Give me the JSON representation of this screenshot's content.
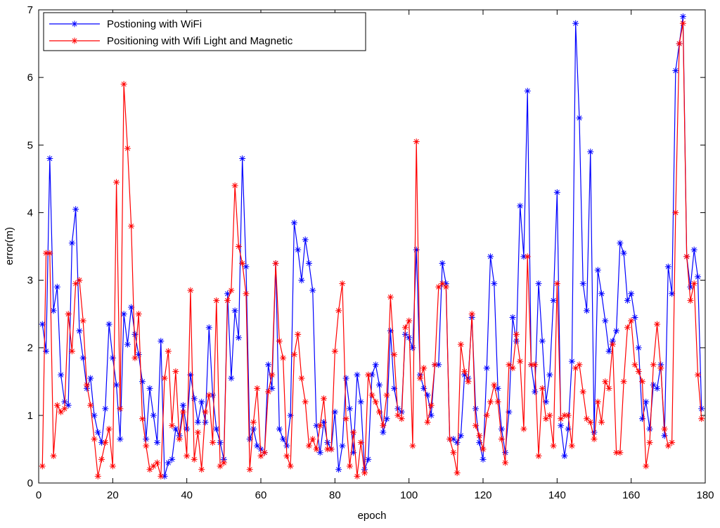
{
  "chart_data": {
    "type": "line",
    "xlabel": "epoch",
    "ylabel": "error(m)",
    "xlim": [
      0,
      180
    ],
    "xticks": [
      0,
      20,
      40,
      60,
      80,
      100,
      120,
      140,
      160,
      180
    ],
    "ylim": [
      0,
      7
    ],
    "yticks": [
      0,
      1,
      2,
      3,
      4,
      5,
      6,
      7
    ],
    "grid": false,
    "legend": "upper left",
    "marker": "*",
    "x": [
      1,
      2,
      3,
      4,
      5,
      6,
      7,
      8,
      9,
      10,
      11,
      12,
      13,
      14,
      15,
      16,
      17,
      18,
      19,
      20,
      21,
      22,
      23,
      24,
      25,
      26,
      27,
      28,
      29,
      30,
      31,
      32,
      33,
      34,
      35,
      36,
      37,
      38,
      39,
      40,
      41,
      42,
      43,
      44,
      45,
      46,
      47,
      48,
      49,
      50,
      51,
      52,
      53,
      54,
      55,
      56,
      57,
      58,
      59,
      60,
      61,
      62,
      63,
      64,
      65,
      66,
      67,
      68,
      69,
      70,
      71,
      72,
      73,
      74,
      75,
      76,
      77,
      78,
      79,
      80,
      81,
      82,
      83,
      84,
      85,
      86,
      87,
      88,
      89,
      90,
      91,
      92,
      93,
      94,
      95,
      96,
      97,
      98,
      99,
      100,
      101,
      102,
      103,
      104,
      105,
      106,
      107,
      108,
      109,
      110,
      111,
      112,
      113,
      114,
      115,
      116,
      117,
      118,
      119,
      120,
      121,
      122,
      123,
      124,
      125,
      126,
      127,
      128,
      129,
      130,
      131,
      132,
      133,
      134,
      135,
      136,
      137,
      138,
      139,
      140,
      141,
      142,
      143,
      144,
      145,
      146,
      147,
      148,
      149,
      150,
      151,
      152,
      153,
      154,
      155,
      156,
      157,
      158,
      159,
      160,
      161,
      162,
      163,
      164,
      165,
      166,
      167,
      168,
      169,
      170,
      171,
      172,
      173,
      174,
      175,
      176,
      177,
      178,
      179
    ],
    "series": [
      {
        "name": "Postioning with WiFi",
        "color": "#0000ff",
        "values": [
          2.35,
          1.95,
          4.8,
          2.55,
          2.9,
          1.6,
          1.2,
          1.15,
          3.55,
          4.05,
          2.25,
          1.85,
          1.4,
          1.55,
          1.0,
          0.75,
          0.6,
          1.1,
          2.35,
          1.85,
          1.45,
          0.65,
          2.5,
          2.05,
          2.6,
          2.2,
          1.9,
          1.5,
          0.65,
          1.4,
          1.0,
          0.6,
          2.1,
          0.1,
          0.3,
          0.35,
          0.8,
          0.7,
          1.15,
          0.8,
          1.6,
          1.25,
          0.9,
          1.2,
          0.9,
          2.3,
          1.3,
          0.8,
          0.6,
          0.35,
          2.8,
          1.55,
          2.55,
          2.15,
          4.8,
          3.2,
          0.65,
          0.8,
          0.55,
          0.5,
          0.45,
          1.75,
          1.4,
          3.25,
          0.8,
          0.65,
          0.55,
          1.0,
          3.85,
          3.45,
          3.0,
          3.6,
          3.25,
          2.85,
          0.85,
          0.45,
          0.9,
          0.6,
          0.5,
          1.05,
          0.2,
          0.55,
          1.55,
          1.1,
          0.45,
          1.6,
          1.2,
          0.2,
          0.35,
          1.6,
          1.75,
          1.45,
          0.75,
          0.95,
          2.25,
          1.4,
          1.1,
          1.05,
          2.2,
          2.15,
          2.0,
          3.45,
          1.6,
          1.4,
          1.3,
          1.0,
          1.75,
          1.75,
          3.25,
          2.95,
          0.65,
          0.65,
          0.6,
          0.7,
          1.6,
          1.55,
          2.45,
          1.1,
          0.6,
          0.35,
          1.7,
          3.35,
          2.95,
          1.4,
          0.8,
          0.45,
          1.05,
          2.45,
          2.1,
          4.1,
          3.35,
          5.8,
          1.75,
          1.35,
          2.95,
          2.1,
          1.2,
          1.6,
          2.7,
          4.3,
          0.85,
          0.4,
          0.8,
          1.8,
          6.8,
          5.4,
          2.95,
          2.55,
          4.9,
          0.75,
          3.15,
          2.8,
          2.4,
          1.95,
          2.1,
          2.25,
          3.55,
          3.4,
          2.7,
          2.8,
          2.45,
          2.0,
          0.95,
          1.2,
          0.8,
          1.45,
          1.4,
          1.75,
          0.7,
          3.2,
          2.8,
          6.1,
          6.5,
          6.9,
          3.35,
          2.9,
          3.45,
          3.05,
          1.1
        ]
      },
      {
        "name": "Positioning with Wifi Light and Magnetic",
        "color": "#ff0000",
        "values": [
          0.25,
          3.4,
          3.4,
          0.4,
          1.15,
          1.05,
          1.1,
          2.5,
          1.95,
          2.95,
          3.0,
          2.4,
          1.45,
          1.15,
          0.65,
          0.1,
          0.35,
          0.6,
          0.8,
          0.25,
          4.45,
          1.1,
          5.9,
          4.95,
          3.8,
          1.85,
          2.5,
          0.95,
          0.55,
          0.2,
          0.25,
          0.3,
          0.1,
          1.55,
          1.95,
          0.85,
          1.65,
          0.65,
          1.05,
          0.4,
          2.85,
          0.35,
          0.75,
          0.2,
          1.05,
          1.3,
          0.6,
          2.7,
          0.25,
          0.3,
          2.7,
          2.85,
          4.4,
          3.5,
          3.25,
          2.8,
          0.2,
          0.9,
          1.4,
          0.4,
          0.45,
          1.35,
          1.6,
          3.25,
          2.1,
          1.85,
          0.4,
          0.25,
          1.9,
          2.2,
          1.55,
          1.2,
          0.55,
          0.65,
          0.5,
          0.85,
          1.25,
          0.5,
          0.5,
          1.95,
          2.55,
          2.95,
          0.95,
          0.25,
          0.75,
          0.1,
          0.6,
          0.15,
          1.6,
          1.3,
          1.2,
          1.05,
          0.85,
          1.3,
          2.75,
          1.9,
          1.0,
          0.95,
          2.3,
          2.4,
          0.55,
          5.05,
          1.55,
          1.7,
          0.9,
          1.15,
          1.75,
          2.9,
          2.95,
          2.9,
          0.65,
          0.45,
          0.15,
          2.05,
          1.65,
          1.5,
          2.5,
          0.85,
          0.7,
          0.5,
          1.0,
          1.2,
          1.45,
          1.2,
          0.65,
          0.3,
          1.75,
          1.7,
          2.2,
          1.8,
          0.8,
          3.35,
          1.75,
          1.75,
          0.4,
          1.4,
          0.95,
          1.0,
          0.55,
          2.95,
          0.95,
          1.0,
          1.0,
          0.55,
          1.7,
          1.75,
          1.35,
          0.95,
          0.9,
          0.65,
          1.2,
          0.9,
          1.5,
          1.4,
          2.05,
          0.45,
          0.45,
          1.5,
          2.3,
          2.4,
          1.75,
          1.65,
          1.5,
          0.25,
          0.6,
          1.75,
          2.35,
          1.7,
          0.8,
          0.55,
          0.6,
          4.0,
          6.5,
          6.8,
          3.35,
          2.7,
          2.95,
          1.6,
          0.95
        ]
      }
    ]
  }
}
